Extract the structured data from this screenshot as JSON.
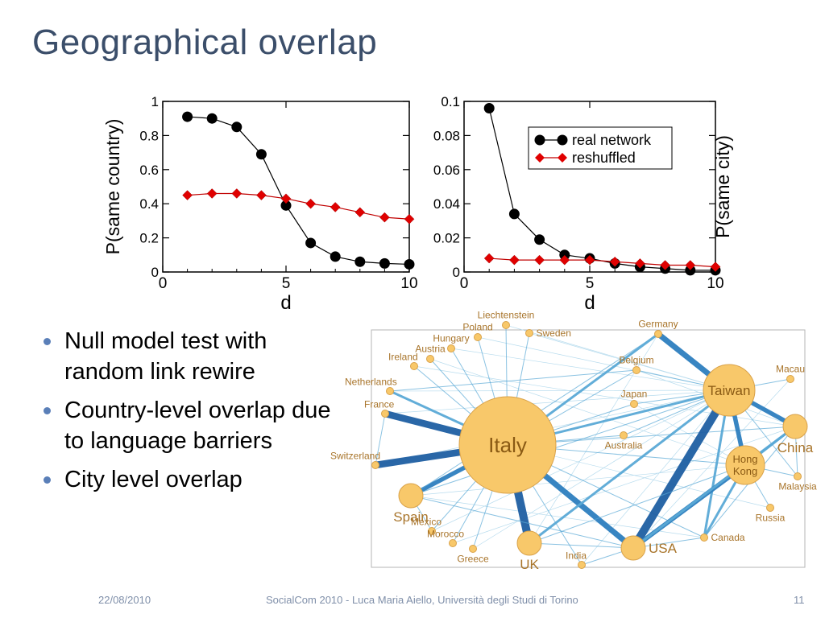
{
  "slide": {
    "title": "Geographical overlap",
    "bullets": [
      "Null model test with random link rewire",
      "Country-level overlap due to language barriers",
      "City level overlap"
    ],
    "footer_date": "22/08/2010",
    "footer_center": "SocialCom 2010 - Luca Maria Aiello, Università degli Studi di Torino",
    "footer_page": "11"
  },
  "colors": {
    "title": "#3b4e6a",
    "real": "#000000",
    "reshuffled": "#e00000",
    "edge": "#4a9cc8",
    "node": "#f7c468"
  },
  "chart_data": [
    {
      "type": "line",
      "xlabel": "d",
      "ylabel": "P(same country)",
      "xlim": [
        0,
        10
      ],
      "ylim": [
        0,
        1
      ],
      "xticks": [
        "0",
        "5",
        "10"
      ],
      "yticks": [
        "0",
        "0.2",
        "0.4",
        "0.6",
        "0.8",
        "1"
      ],
      "series": [
        {
          "name": "real network",
          "x": [
            1,
            2,
            3,
            4,
            5,
            6,
            7,
            8,
            9,
            10
          ],
          "values": [
            0.91,
            0.9,
            0.85,
            0.69,
            0.39,
            0.17,
            0.09,
            0.06,
            0.05,
            0.045
          ]
        },
        {
          "name": "reshuffled",
          "x": [
            1,
            2,
            3,
            4,
            5,
            6,
            7,
            8,
            9,
            10
          ],
          "values": [
            0.45,
            0.46,
            0.46,
            0.45,
            0.43,
            0.4,
            0.38,
            0.35,
            0.32,
            0.31
          ]
        }
      ]
    },
    {
      "type": "line",
      "xlabel": "d",
      "ylabel": "P(same city)",
      "xlim": [
        0,
        10
      ],
      "ylim": [
        0,
        0.1
      ],
      "xticks": [
        "0",
        "5",
        "10"
      ],
      "yticks": [
        "0",
        "0.02",
        "0.04",
        "0.06",
        "0.08",
        "0.1"
      ],
      "legend": "top-right",
      "series": [
        {
          "name": "real network",
          "x": [
            1,
            2,
            3,
            4,
            5,
            6,
            7,
            8,
            9,
            10
          ],
          "values": [
            0.096,
            0.034,
            0.019,
            0.01,
            0.008,
            0.005,
            0.003,
            0.002,
            0.001,
            0.001
          ]
        },
        {
          "name": "reshuffled",
          "x": [
            1,
            2,
            3,
            4,
            5,
            6,
            7,
            8,
            9,
            10
          ],
          "values": [
            0.008,
            0.007,
            0.007,
            0.007,
            0.007,
            0.006,
            0.005,
            0.004,
            0.004,
            0.003
          ]
        }
      ]
    }
  ],
  "network": {
    "nodes": [
      {
        "id": "Italy",
        "label": "Italy",
        "size": 5
      },
      {
        "id": "Taiwan",
        "label": "Taiwan",
        "size": 4
      },
      {
        "id": "HongKong",
        "label": "Hong Kong",
        "size": 3
      },
      {
        "id": "Spain",
        "label": "Spain",
        "size": 2
      },
      {
        "id": "China",
        "label": "China",
        "size": 2
      },
      {
        "id": "USA",
        "label": "USA",
        "size": 2
      },
      {
        "id": "UK",
        "label": "UK",
        "size": 2
      },
      {
        "id": "Germany",
        "label": "Germany",
        "size": 1
      },
      {
        "id": "Belgium",
        "label": "Belgium",
        "size": 1
      },
      {
        "id": "Japan",
        "label": "Japan",
        "size": 1
      },
      {
        "id": "Australia",
        "label": "Australia",
        "size": 1
      },
      {
        "id": "France",
        "label": "France",
        "size": 1
      },
      {
        "id": "Switzerland",
        "label": "Switzerland",
        "size": 1
      },
      {
        "id": "Netherlands",
        "label": "Netherlands",
        "size": 1
      },
      {
        "id": "Canada",
        "label": "Canada",
        "size": 1
      },
      {
        "id": "Mexico",
        "label": "Mexico",
        "size": 1
      },
      {
        "id": "Poland",
        "label": "Poland",
        "size": 1
      },
      {
        "id": "Sweden",
        "label": "Sweden",
        "size": 1
      },
      {
        "id": "Macau",
        "label": "Macau",
        "size": 1
      },
      {
        "id": "Malaysia",
        "label": "Malaysia",
        "size": 1
      },
      {
        "id": "Russia",
        "label": "Russia",
        "size": 1
      },
      {
        "id": "India",
        "label": "India",
        "size": 1
      },
      {
        "id": "Greece",
        "label": "Greece",
        "size": 1
      },
      {
        "id": "Morocco",
        "label": "Morocco",
        "size": 1
      },
      {
        "id": "Liechtenstein",
        "label": "Liechtenstein",
        "size": 1
      },
      {
        "id": "Hungary",
        "label": "Hungary",
        "size": 1
      },
      {
        "id": "Austria",
        "label": "Austria",
        "size": 1
      },
      {
        "id": "Ireland",
        "label": "Ireland",
        "size": 1
      }
    ],
    "edges": [
      [
        "Italy",
        "Switzerland",
        5
      ],
      [
        "Italy",
        "France",
        5
      ],
      [
        "Italy",
        "UK",
        6
      ],
      [
        "Italy",
        "USA",
        4
      ],
      [
        "Italy",
        "Spain",
        3
      ],
      [
        "Italy",
        "Germany",
        2
      ],
      [
        "Italy",
        "Taiwan",
        2
      ],
      [
        "Italy",
        "Netherlands",
        2
      ],
      [
        "Italy",
        "Belgium",
        1
      ],
      [
        "Italy",
        "China",
        1
      ],
      [
        "Italy",
        "HongKong",
        1
      ],
      [
        "Italy",
        "Japan",
        1
      ],
      [
        "Italy",
        "Australia",
        1
      ],
      [
        "Italy",
        "Canada",
        1
      ],
      [
        "Italy",
        "Mexico",
        1
      ],
      [
        "Italy",
        "Poland",
        1
      ],
      [
        "Italy",
        "Sweden",
        1
      ],
      [
        "Italy",
        "Greece",
        1
      ],
      [
        "Italy",
        "Morocco",
        1
      ],
      [
        "Italy",
        "Liechtenstein",
        1
      ],
      [
        "Italy",
        "Hungary",
        1
      ],
      [
        "Italy",
        "Austria",
        1
      ],
      [
        "Italy",
        "Ireland",
        1
      ],
      [
        "Italy",
        "India",
        1
      ],
      [
        "Taiwan",
        "USA",
        6
      ],
      [
        "Taiwan",
        "HongKong",
        3
      ],
      [
        "Taiwan",
        "China",
        3
      ],
      [
        "Taiwan",
        "Germany",
        4
      ],
      [
        "Taiwan",
        "UK",
        2
      ],
      [
        "Taiwan",
        "Canada",
        2
      ],
      [
        "Taiwan",
        "Macau",
        1
      ],
      [
        "Taiwan",
        "Malaysia",
        1
      ],
      [
        "Taiwan",
        "Belgium",
        1
      ],
      [
        "Taiwan",
        "Japan",
        1
      ],
      [
        "Taiwan",
        "Australia",
        1
      ],
      [
        "Taiwan",
        "Spain",
        1
      ],
      [
        "HongKong",
        "USA",
        3
      ],
      [
        "HongKong",
        "Canada",
        2
      ],
      [
        "HongKong",
        "China",
        2
      ],
      [
        "HongKong",
        "UK",
        1
      ],
      [
        "HongKong",
        "Malaysia",
        1
      ],
      [
        "HongKong",
        "Russia",
        1
      ],
      [
        "USA",
        "UK",
        1
      ],
      [
        "USA",
        "Canada",
        1
      ],
      [
        "USA",
        "China",
        2
      ],
      [
        "USA",
        "India",
        1
      ],
      [
        "USA",
        "Spain",
        1
      ],
      [
        "China",
        "Malaysia",
        1
      ],
      [
        "China",
        "Canada",
        1
      ],
      [
        "Germany",
        "Spain",
        1
      ],
      [
        "France",
        "Switzerland",
        1
      ],
      [
        "Belgium",
        "Netherlands",
        1
      ],
      [
        "Spain",
        "Mexico",
        1
      ]
    ]
  }
}
